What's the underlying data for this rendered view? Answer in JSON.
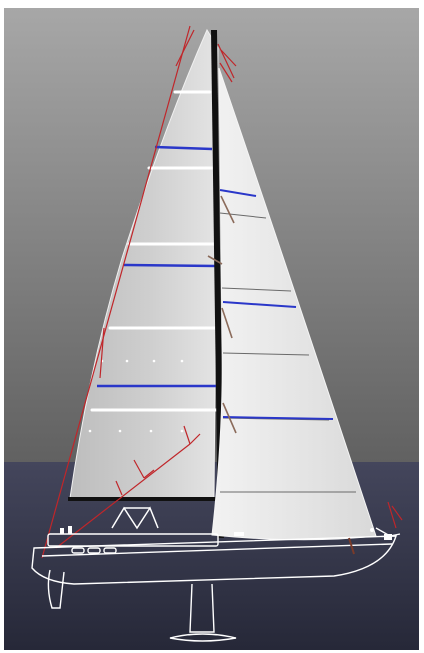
{
  "scene": {
    "subject": "sailboat-sail-plan-render",
    "colors": {
      "sky_top": "#a7a7a7",
      "sky_bottom": "#616161",
      "water_top": "#44465c",
      "water_bottom": "#262838",
      "sail": "#e9e9e9",
      "mast": "#111111",
      "rigging": "#c0262a",
      "batten": "#ffffff",
      "draft_stripe": "#2a37c9",
      "hull_line": "#ffffff"
    }
  }
}
